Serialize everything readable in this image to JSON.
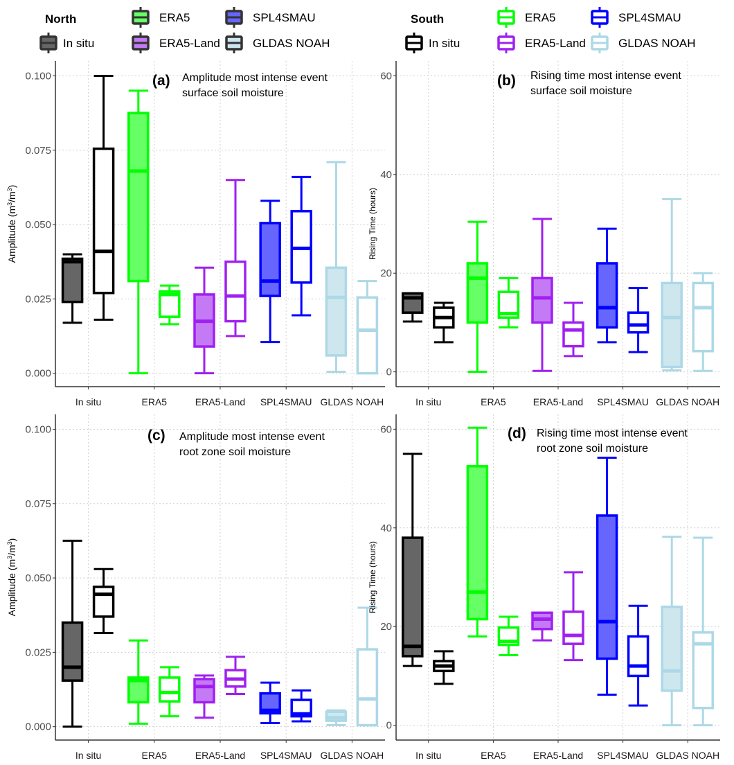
{
  "legend": {
    "north": {
      "title": "North",
      "items": [
        {
          "label": "In situ",
          "color": "#000000",
          "fill": "#666666"
        },
        {
          "label": "ERA5",
          "color": "#00ff00",
          "fill": "#66ff66"
        },
        {
          "label": "ERA5-Land",
          "color": "#a020f0",
          "fill": "#c57af5"
        },
        {
          "label": "SPL4SMAU",
          "color": "#0000ff",
          "fill": "#6666ff"
        },
        {
          "label": "GLDAS NOAH",
          "color": "#add8e6",
          "fill": "#cee7ee"
        }
      ]
    },
    "south": {
      "title": "South",
      "items": [
        {
          "label": "In situ",
          "color": "#000000",
          "fill": "#ffffff"
        },
        {
          "label": "ERA5",
          "color": "#00ff00",
          "fill": "#ffffff"
        },
        {
          "label": "ERA5-Land",
          "color": "#a020f0",
          "fill": "#ffffff"
        },
        {
          "label": "SPL4SMAU",
          "color": "#0000ff",
          "fill": "#ffffff"
        },
        {
          "label": "GLDAS NOAH",
          "color": "#add8e6",
          "fill": "#ffffff"
        }
      ]
    }
  },
  "chart_data": [
    {
      "type": "box",
      "panel": "(a)",
      "title": [
        "Amplitude most intense event",
        "surface soil moisture"
      ],
      "ylabel": "Amplitude (m3/m3)",
      "ylabel_parts": [
        "Amplitude (m",
        "3",
        "/m",
        "3",
        ")"
      ],
      "ylim": [
        -0.0045,
        0.105
      ],
      "yticks": [
        0.0,
        0.025,
        0.05,
        0.075,
        0.1
      ],
      "ytick_labels": [
        "0.000",
        "0.025",
        "0.050",
        "0.075",
        "0.100"
      ],
      "categories": [
        "In situ",
        "ERA5",
        "ERA5-Land",
        "SPL4SMAU",
        "GLDAS NOAH"
      ],
      "grid": true,
      "series": [
        {
          "name": "North",
          "boxes": [
            {
              "min": 0.017,
              "q1": 0.024,
              "median": 0.0375,
              "q3": 0.0385,
              "max": 0.04
            },
            {
              "min": 0.0,
              "q1": 0.031,
              "median": 0.068,
              "q3": 0.0875,
              "max": 0.095
            },
            {
              "min": 0.0,
              "q1": 0.009,
              "median": 0.0175,
              "q3": 0.0265,
              "max": 0.0355
            },
            {
              "min": 0.0105,
              "q1": 0.026,
              "median": 0.031,
              "q3": 0.0505,
              "max": 0.058
            },
            {
              "min": 0.0005,
              "q1": 0.006,
              "median": 0.0255,
              "q3": 0.0355,
              "max": 0.071
            }
          ]
        },
        {
          "name": "South",
          "boxes": [
            {
              "min": 0.018,
              "q1": 0.027,
              "median": 0.041,
              "q3": 0.0755,
              "max": 0.1
            },
            {
              "min": 0.0165,
              "q1": 0.019,
              "median": 0.0265,
              "q3": 0.0275,
              "max": 0.0295
            },
            {
              "min": 0.0125,
              "q1": 0.0175,
              "median": 0.026,
              "q3": 0.0375,
              "max": 0.065
            },
            {
              "min": 0.0195,
              "q1": 0.0305,
              "median": 0.042,
              "q3": 0.0545,
              "max": 0.066
            },
            {
              "min": 0.0,
              "q1": 0.0,
              "median": 0.0145,
              "q3": 0.0255,
              "max": 0.031
            }
          ]
        }
      ]
    },
    {
      "type": "box",
      "panel": "(b)",
      "title": [
        "Rising time most intense event",
        "surface soil moisture"
      ],
      "ylabel": "Rising Time (hours)",
      "ylim": [
        -3,
        63
      ],
      "yticks": [
        0,
        20,
        40,
        60
      ],
      "ytick_labels": [
        "0",
        "20",
        "40",
        "60"
      ],
      "categories": [
        "In situ",
        "ERA5",
        "ERA5-Land",
        "SPL4SMAU",
        "GLDAS NOAH"
      ],
      "grid": true,
      "series": [
        {
          "name": "North",
          "boxes": [
            {
              "min": 10.2,
              "q1": 12,
              "median": 15,
              "q3": 15.9,
              "max": 15.9
            },
            {
              "min": 0,
              "q1": 10,
              "median": 19,
              "q3": 22,
              "max": 30.4
            },
            {
              "min": 0.2,
              "q1": 10,
              "median": 15,
              "q3": 19,
              "max": 31
            },
            {
              "min": 6,
              "q1": 9,
              "median": 13,
              "q3": 22,
              "max": 29
            },
            {
              "min": 0.3,
              "q1": 1,
              "median": 11,
              "q3": 18,
              "max": 35
            }
          ]
        },
        {
          "name": "South",
          "boxes": [
            {
              "min": 6,
              "q1": 9,
              "median": 11,
              "q3": 13,
              "max": 14
            },
            {
              "min": 9,
              "q1": 11,
              "median": 11.8,
              "q3": 16.2,
              "max": 19
            },
            {
              "min": 3.2,
              "q1": 5.2,
              "median": 8.5,
              "q3": 10,
              "max": 14
            },
            {
              "min": 4,
              "q1": 8,
              "median": 9.5,
              "q3": 12,
              "max": 17
            },
            {
              "min": 0.2,
              "q1": 4.2,
              "median": 13,
              "q3": 18,
              "max": 20
            }
          ]
        }
      ]
    },
    {
      "type": "box",
      "panel": "(c)",
      "title": [
        "Amplitude most intense event",
        "root zone soil moisture"
      ],
      "ylabel": "Amplitude (m3/m3)",
      "ylabel_parts": [
        "Amplitude (m",
        "3",
        "/m",
        "3",
        ")"
      ],
      "ylim": [
        -0.0045,
        0.105
      ],
      "yticks": [
        0.0,
        0.025,
        0.05,
        0.075,
        0.1
      ],
      "ytick_labels": [
        "0.000",
        "0.025",
        "0.050",
        "0.075",
        "0.100"
      ],
      "categories": [
        "In situ",
        "ERA5",
        "ERA5-Land",
        "SPL4SMAU",
        "GLDAS NOAH"
      ],
      "grid": true,
      "series": [
        {
          "name": "North",
          "boxes": [
            {
              "min": 0.0,
              "q1": 0.0155,
              "median": 0.02,
              "q3": 0.035,
              "max": 0.0625
            },
            {
              "min": 0.001,
              "q1": 0.0082,
              "median": 0.0155,
              "q3": 0.0165,
              "max": 0.029
            },
            {
              "min": 0.003,
              "q1": 0.0082,
              "median": 0.0135,
              "q3": 0.016,
              "max": 0.0172
            },
            {
              "min": 0.0012,
              "q1": 0.0045,
              "median": 0.0055,
              "q3": 0.0112,
              "max": 0.0148
            },
            {
              "min": 0.0005,
              "q1": 0.002,
              "median": 0.003,
              "q3": 0.005,
              "max": 0.0055
            }
          ]
        },
        {
          "name": "South",
          "boxes": [
            {
              "min": 0.0315,
              "q1": 0.037,
              "median": 0.0445,
              "q3": 0.047,
              "max": 0.053
            },
            {
              "min": 0.0035,
              "q1": 0.0085,
              "median": 0.0115,
              "q3": 0.0165,
              "max": 0.02
            },
            {
              "min": 0.011,
              "q1": 0.0135,
              "median": 0.016,
              "q3": 0.019,
              "max": 0.0235
            },
            {
              "min": 0.0018,
              "q1": 0.0035,
              "median": 0.0043,
              "q3": 0.009,
              "max": 0.0122
            },
            {
              "min": 0.0005,
              "q1": 0.0005,
              "median": 0.0093,
              "q3": 0.026,
              "max": 0.04
            }
          ]
        }
      ]
    },
    {
      "type": "box",
      "panel": "(d)",
      "title": [
        "Rising time most intense  event",
        "root zone soil moisture"
      ],
      "ylabel": "Rising Time (hours)",
      "ylim": [
        -3,
        63
      ],
      "yticks": [
        0,
        20,
        40,
        60
      ],
      "ytick_labels": [
        "0",
        "20",
        "40",
        "60"
      ],
      "categories": [
        "In situ",
        "ERA5",
        "ERA5-Land",
        "SPL4SMAU",
        "GLDAS NOAH"
      ],
      "grid": true,
      "series": [
        {
          "name": "North",
          "boxes": [
            {
              "min": 12,
              "q1": 14,
              "median": 16,
              "q3": 38,
              "max": 55
            },
            {
              "min": 18,
              "q1": 21.5,
              "median": 27,
              "q3": 52.5,
              "max": 60.3
            },
            {
              "min": 17.2,
              "q1": 19.5,
              "median": 21.5,
              "q3": 22.8,
              "max": 22.8
            },
            {
              "min": 6.2,
              "q1": 13.5,
              "median": 21,
              "q3": 42.5,
              "max": 54.2
            },
            {
              "min": 0,
              "q1": 7,
              "median": 11,
              "q3": 24,
              "max": 38.2
            }
          ]
        },
        {
          "name": "South",
          "boxes": [
            {
              "min": 8.4,
              "q1": 11,
              "median": 12,
              "q3": 13,
              "max": 15
            },
            {
              "min": 14.2,
              "q1": 16.3,
              "median": 17,
              "q3": 19.8,
              "max": 22
            },
            {
              "min": 13.2,
              "q1": 16.5,
              "median": 18.2,
              "q3": 23,
              "max": 31
            },
            {
              "min": 4,
              "q1": 10,
              "median": 12,
              "q3": 18,
              "max": 24.2
            },
            {
              "min": 0,
              "q1": 3.5,
              "median": 16.5,
              "q3": 18.8,
              "max": 38
            }
          ]
        }
      ]
    }
  ]
}
